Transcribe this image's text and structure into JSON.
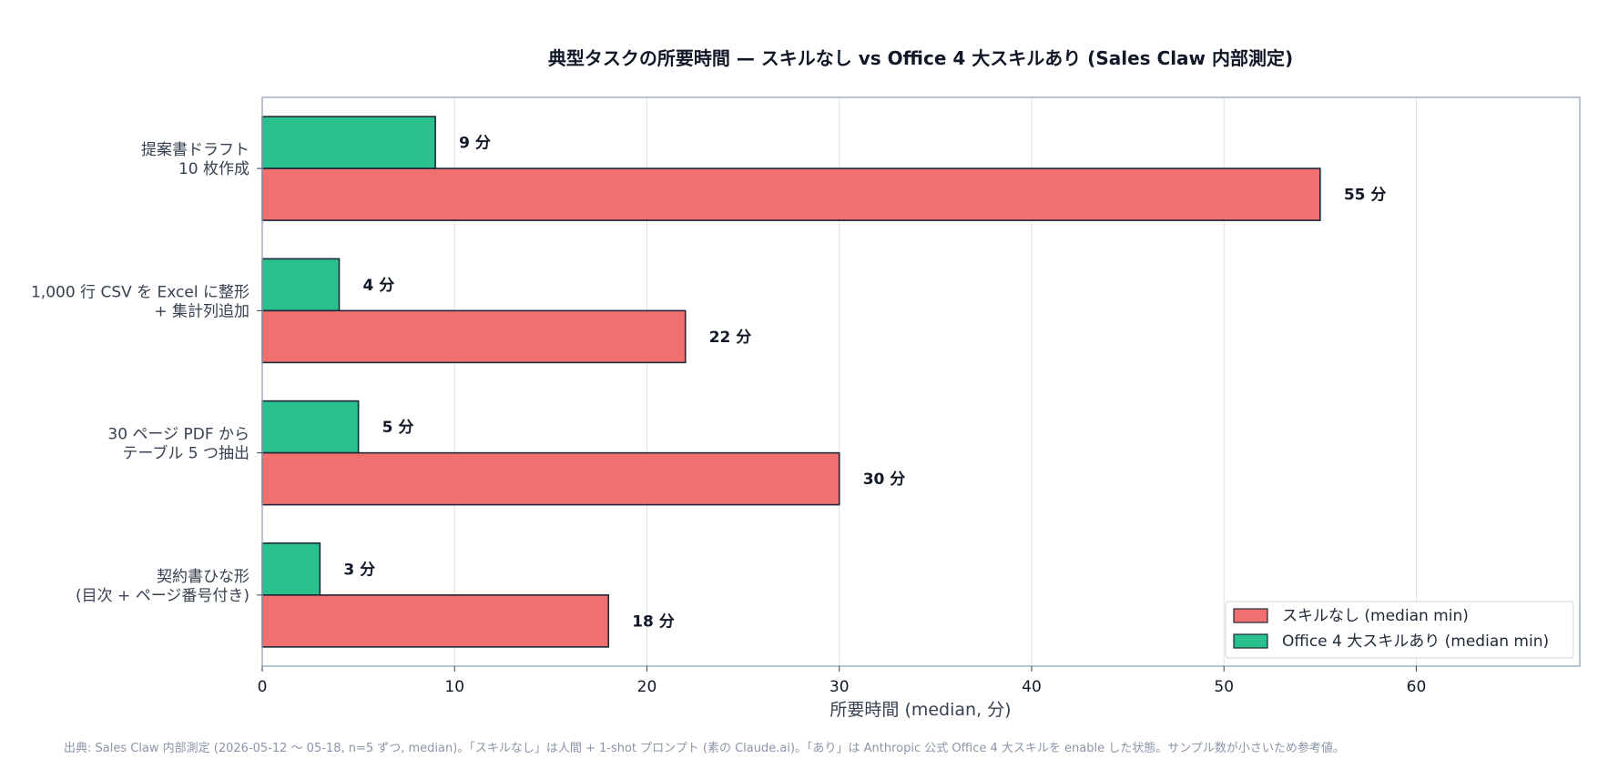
{
  "chart_data": {
    "type": "bar",
    "orientation": "horizontal",
    "title": "典型タスクの所要時間 — スキルなし vs Office 4 大スキルあり (Sales Claw 内部測定)",
    "xlabel": "所要時間 (median, 分)",
    "ylabel": "",
    "xlim": [
      0,
      68.5
    ],
    "xticks": [
      0,
      10,
      20,
      30,
      40,
      50,
      60
    ],
    "grid": "vertical",
    "legend_position": "bottom-right",
    "categories": [
      [
        "提案書ドラフト",
        "10 枚作成"
      ],
      [
        "1,000 行 CSV を Excel に整形",
        "+ 集計列追加"
      ],
      [
        "30 ページ PDF から",
        "テーブル 5 つ抽出"
      ],
      [
        "契約書ひな形",
        "(目次 + ページ番号付き)"
      ]
    ],
    "series": [
      {
        "name": "スキルなし (median min)",
        "values": [
          55,
          22,
          30,
          18
        ],
        "color": "#f07070",
        "labels": [
          "55 分",
          "22 分",
          "30 分",
          "18 分"
        ]
      },
      {
        "name": "Office 4 大スキルあり (median min)",
        "values": [
          9,
          4,
          5,
          3
        ],
        "color": "#2ac08d",
        "labels": [
          "9 分",
          "4 分",
          "5 分",
          "3 分"
        ]
      }
    ],
    "footnote": "出典: Sales Claw 内部測定 (2026-05-12 〜 05-18, n=5 ずつ, median)。「スキルなし」は人間 + 1-shot プロンプト (素の Claude.ai)。「あり」は Anthropic 公式 Office 4 大スキルを enable した状態。サンプル数が小さいため参考値。"
  }
}
